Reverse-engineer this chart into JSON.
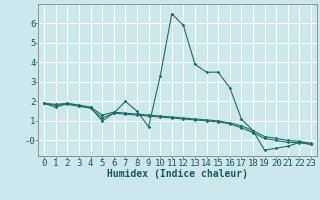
{
  "title": "",
  "xlabel": "Humidex (Indice chaleur)",
  "background_color": "#cce8ec",
  "grid_color": "#ffffff",
  "line_color": "#1a7068",
  "x": [
    0,
    1,
    2,
    3,
    4,
    5,
    6,
    7,
    8,
    9,
    10,
    11,
    12,
    13,
    14,
    15,
    16,
    17,
    18,
    19,
    20,
    21,
    22,
    23
  ],
  "series1": [
    1.9,
    1.7,
    1.9,
    1.8,
    1.7,
    1.0,
    1.4,
    2.0,
    1.5,
    0.7,
    3.3,
    6.5,
    5.9,
    3.9,
    3.5,
    3.5,
    2.7,
    1.1,
    0.5,
    -0.5,
    -0.4,
    -0.3,
    -0.1,
    -0.2
  ],
  "series2": [
    1.9,
    1.85,
    1.9,
    1.8,
    1.7,
    1.3,
    1.45,
    1.4,
    1.35,
    1.3,
    1.25,
    1.2,
    1.15,
    1.1,
    1.05,
    1.0,
    0.9,
    0.75,
    0.5,
    0.2,
    0.1,
    0.0,
    -0.05,
    -0.15
  ],
  "series3": [
    1.9,
    1.8,
    1.85,
    1.75,
    1.65,
    1.15,
    1.4,
    1.35,
    1.3,
    1.25,
    1.2,
    1.15,
    1.1,
    1.05,
    1.0,
    0.95,
    0.85,
    0.65,
    0.4,
    0.1,
    0.0,
    -0.1,
    -0.12,
    -0.2
  ],
  "ylim": [
    -0.8,
    7.0
  ],
  "xlim": [
    -0.5,
    23.5
  ],
  "yticks": [
    0,
    1,
    2,
    3,
    4,
    5,
    6
  ],
  "ytick_labels": [
    "-0",
    "1",
    "2",
    "3",
    "4",
    "5",
    "6"
  ],
  "xticks": [
    0,
    1,
    2,
    3,
    4,
    5,
    6,
    7,
    8,
    9,
    10,
    11,
    12,
    13,
    14,
    15,
    16,
    17,
    18,
    19,
    20,
    21,
    22,
    23
  ],
  "label_color": "#1a5a5a",
  "label_fontsize": 6.5,
  "xlabel_fontsize": 7.0
}
